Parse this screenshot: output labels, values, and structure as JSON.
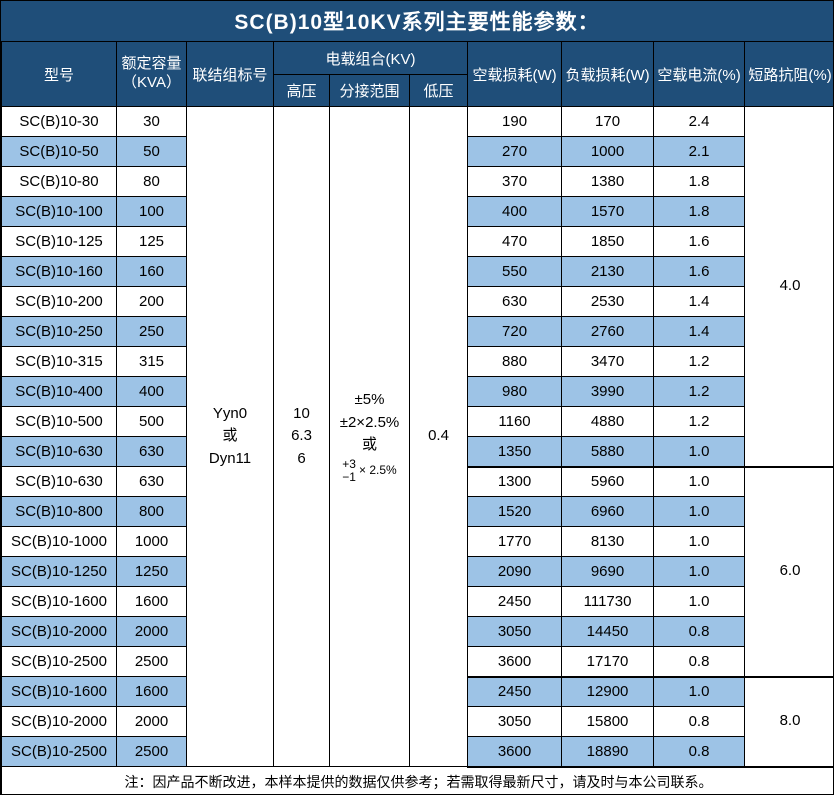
{
  "title": "SC(B)10型10KV系列主要性能参数：",
  "colors": {
    "header_bg": "#1F4E79",
    "alt_row_bg": "#9DC3E6",
    "border": "#000000",
    "header_text": "#ffffff"
  },
  "headers": {
    "model": "型号",
    "capacity": "额定容量\n（KVA）",
    "connection": "联结组标号",
    "voltage_combo": "电载组合(KV)",
    "hv": "高压",
    "tap_range": "分接范围",
    "lv": "低压",
    "no_load_loss": "空载损耗(W)",
    "load_loss": "负载损耗(W)",
    "no_load_current": "空载电流(%)",
    "impedance": "短路抗阻(%)"
  },
  "merged": {
    "connection_lines": [
      "Yyn0",
      "或",
      "Dyn11"
    ],
    "hv_lines": [
      "10",
      "6.3",
      "6"
    ],
    "tap_lines": [
      "±5%",
      "±2×2.5%",
      "或"
    ],
    "tap_stack_top": "+3",
    "tap_stack_bottom": "−1",
    "tap_stack_suffix": "× 2.5%",
    "lv": "0.4"
  },
  "impedance_groups": [
    {
      "value": "4.0",
      "row_count": 12
    },
    {
      "value": "6.0",
      "row_count": 7
    },
    {
      "value": "8.0",
      "row_count": 3
    }
  ],
  "rows": [
    {
      "model": "SC(B)10-30",
      "kva": "30",
      "no_load_loss": "190",
      "load_loss": "170",
      "no_load_current": "2.4"
    },
    {
      "model": "SC(B)10-50",
      "kva": "50",
      "no_load_loss": "270",
      "load_loss": "1000",
      "no_load_current": "2.1"
    },
    {
      "model": "SC(B)10-80",
      "kva": "80",
      "no_load_loss": "370",
      "load_loss": "1380",
      "no_load_current": "1.8"
    },
    {
      "model": "SC(B)10-100",
      "kva": "100",
      "no_load_loss": "400",
      "load_loss": "1570",
      "no_load_current": "1.8"
    },
    {
      "model": "SC(B)10-125",
      "kva": "125",
      "no_load_loss": "470",
      "load_loss": "1850",
      "no_load_current": "1.6"
    },
    {
      "model": "SC(B)10-160",
      "kva": "160",
      "no_load_loss": "550",
      "load_loss": "2130",
      "no_load_current": "1.6"
    },
    {
      "model": "SC(B)10-200",
      "kva": "200",
      "no_load_loss": "630",
      "load_loss": "2530",
      "no_load_current": "1.4"
    },
    {
      "model": "SC(B)10-250",
      "kva": "250",
      "no_load_loss": "720",
      "load_loss": "2760",
      "no_load_current": "1.4"
    },
    {
      "model": "SC(B)10-315",
      "kva": "315",
      "no_load_loss": "880",
      "load_loss": "3470",
      "no_load_current": "1.2"
    },
    {
      "model": "SC(B)10-400",
      "kva": "400",
      "no_load_loss": "980",
      "load_loss": "3990",
      "no_load_current": "1.2"
    },
    {
      "model": "SC(B)10-500",
      "kva": "500",
      "no_load_loss": "1160",
      "load_loss": "4880",
      "no_load_current": "1.2"
    },
    {
      "model": "SC(B)10-630",
      "kva": "630",
      "no_load_loss": "1350",
      "load_loss": "5880",
      "no_load_current": "1.0"
    },
    {
      "model": "SC(B)10-630",
      "kva": "630",
      "no_load_loss": "1300",
      "load_loss": "5960",
      "no_load_current": "1.0"
    },
    {
      "model": "SC(B)10-800",
      "kva": "800",
      "no_load_loss": "1520",
      "load_loss": "6960",
      "no_load_current": "1.0"
    },
    {
      "model": "SC(B)10-1000",
      "kva": "1000",
      "no_load_loss": "1770",
      "load_loss": "8130",
      "no_load_current": "1.0"
    },
    {
      "model": "SC(B)10-1250",
      "kva": "1250",
      "no_load_loss": "2090",
      "load_loss": "9690",
      "no_load_current": "1.0"
    },
    {
      "model": "SC(B)10-1600",
      "kva": "1600",
      "no_load_loss": "2450",
      "load_loss": "111730",
      "no_load_current": "1.0"
    },
    {
      "model": "SC(B)10-2000",
      "kva": "2000",
      "no_load_loss": "3050",
      "load_loss": "14450",
      "no_load_current": "0.8"
    },
    {
      "model": "SC(B)10-2500",
      "kva": "2500",
      "no_load_loss": "3600",
      "load_loss": "17170",
      "no_load_current": "0.8"
    },
    {
      "model": "SC(B)10-1600",
      "kva": "1600",
      "no_load_loss": "2450",
      "load_loss": "12900",
      "no_load_current": "1.0"
    },
    {
      "model": "SC(B)10-2000",
      "kva": "2000",
      "no_load_loss": "3050",
      "load_loss": "15800",
      "no_load_current": "0.8"
    },
    {
      "model": "SC(B)10-2500",
      "kva": "2500",
      "no_load_loss": "3600",
      "load_loss": "18890",
      "no_load_current": "0.8"
    }
  ],
  "footnote": "注：因产品不断改进，本样本提供的数据仅供参考；若需取得最新尺寸，请及时与本公司联系。"
}
